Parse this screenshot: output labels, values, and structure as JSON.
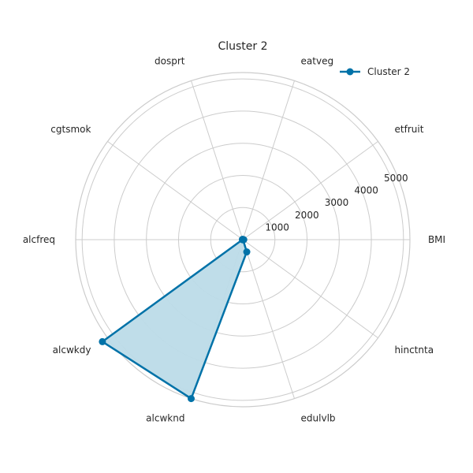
{
  "chart_data": {
    "type": "radar",
    "title": "Cluster 2",
    "categories": [
      "BMI",
      "etfruit",
      "eatveg",
      "dosprt",
      "cgtsmok",
      "alcfreq",
      "alcwkdy",
      "alcwknd",
      "edulvlb",
      "hinctnta"
    ],
    "series": [
      {
        "name": "Cluster 2",
        "color": "#0072a8",
        "fill": "#bcdbe8",
        "values": [
          30,
          5,
          5,
          5,
          15,
          10,
          5400,
          5200,
          400,
          10
        ]
      }
    ],
    "rlim": [
      0,
      5200
    ],
    "rticks": [
      1000,
      2000,
      3000,
      4000,
      5000
    ],
    "rtick_labels": [
      "1000",
      "2000",
      "3000",
      "4000",
      "5000"
    ],
    "grid": true,
    "legend_position": "top-right"
  }
}
